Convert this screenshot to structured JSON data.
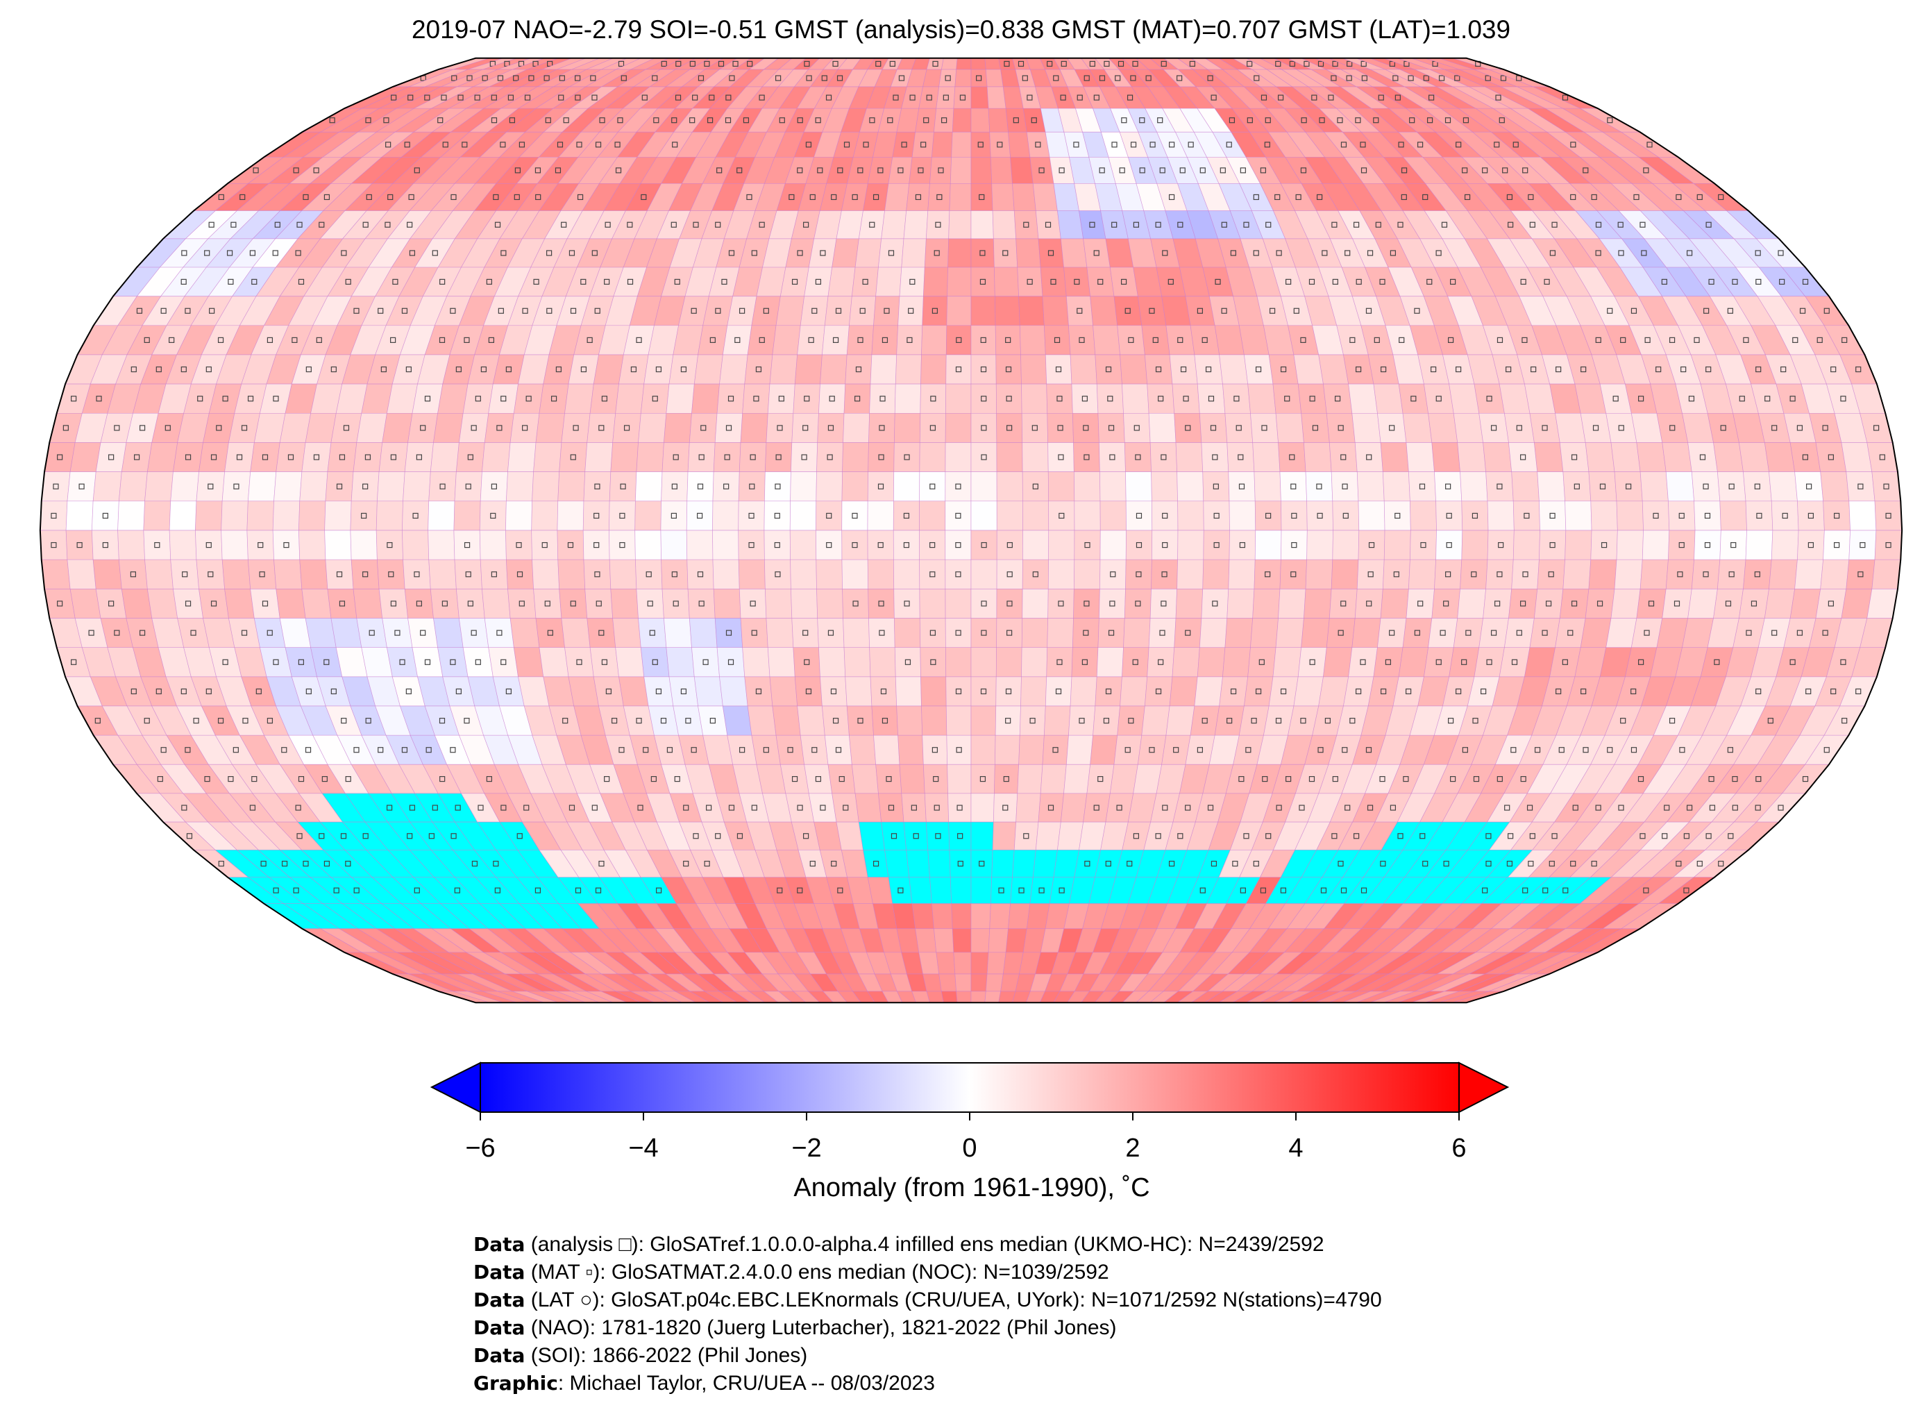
{
  "title": "2019-07 NAO=-2.79 SOI=-0.51 GMST (analysis)=0.838 GMST (MAT)=0.707 GMST (LAT)=1.039",
  "map": {
    "projection": "Robinson",
    "grid": "5x5 degree",
    "missing_color": "#00ffff"
  },
  "colorbar": {
    "min": -6,
    "max": 6,
    "ticks": [
      "−6",
      "−4",
      "−2",
      "0",
      "2",
      "4",
      "6"
    ],
    "tick_values": [
      -6,
      -4,
      -2,
      0,
      2,
      4,
      6
    ],
    "label": "Anomaly (from 1961-1990), ˚C",
    "colors": {
      "low": "#0000ff",
      "mid": "#ffffff",
      "high": "#ff0000"
    },
    "extend": "both"
  },
  "footer": [
    {
      "bold": "Data",
      "text": " (analysis □): GloSATref.1.0.0.0-alpha.4 infilled ens median (UKMO-HC): N=2439/2592"
    },
    {
      "bold": "Data",
      "text": " (MAT ▫): GloSATMAT.2.4.0.0 ens median (NOC): N=1039/2592"
    },
    {
      "bold": "Data",
      "text": " (LAT ○): GloSAT.p04c.EBC.LEKnormals (CRU/UEA, UYork): N=1071/2592 N(stations)=4790"
    },
    {
      "bold": "Data",
      "text": " (NAO): 1781-1820 (Juerg Luterbacher), 1821-2022 (Phil Jones)"
    },
    {
      "bold": "Data",
      "text": " (SOI): 1866-2022 (Phil Jones)"
    },
    {
      "bold": "Graphic",
      "text": ": Michael Taylor, CRU/UEA -- 08/03/2023"
    }
  ]
}
